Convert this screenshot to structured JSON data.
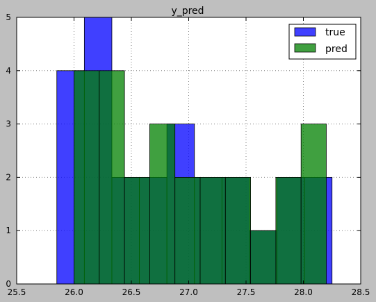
{
  "chart_data": {
    "type": "bar",
    "title": "y_pred",
    "xlabel": "",
    "ylabel": "",
    "xlim": [
      25.5,
      28.5
    ],
    "ylim": [
      0,
      5
    ],
    "xticks": [
      "25.5",
      "26.0",
      "26.5",
      "27.0",
      "27.5",
      "28.0",
      "28.5"
    ],
    "yticks": [
      "0",
      "1",
      "2",
      "3",
      "4",
      "5"
    ],
    "grid": true,
    "legend_position": "top-right",
    "series": [
      {
        "name": "true",
        "color": "#0000ff",
        "bins": [
          {
            "x0": 25.85,
            "x1": 26.09,
            "count": 4
          },
          {
            "x0": 26.09,
            "x1": 26.33,
            "count": 5
          },
          {
            "x0": 26.33,
            "x1": 26.57,
            "count": 2
          },
          {
            "x0": 26.57,
            "x1": 26.81,
            "count": 2
          },
          {
            "x0": 26.81,
            "x1": 27.05,
            "count": 3
          },
          {
            "x0": 27.05,
            "x1": 27.29,
            "count": 2
          },
          {
            "x0": 27.29,
            "x1": 27.53,
            "count": 2
          },
          {
            "x0": 27.53,
            "x1": 27.77,
            "count": 1
          },
          {
            "x0": 27.77,
            "x1": 28.01,
            "count": 2
          },
          {
            "x0": 28.01,
            "x1": 28.25,
            "count": 2
          }
        ]
      },
      {
        "name": "pred",
        "color": "#008000",
        "bins": [
          {
            "x0": 26.0,
            "x1": 26.22,
            "count": 4
          },
          {
            "x0": 26.22,
            "x1": 26.44,
            "count": 4
          },
          {
            "x0": 26.44,
            "x1": 26.66,
            "count": 2
          },
          {
            "x0": 26.66,
            "x1": 26.88,
            "count": 3
          },
          {
            "x0": 26.88,
            "x1": 27.1,
            "count": 2
          },
          {
            "x0": 27.1,
            "x1": 27.32,
            "count": 2
          },
          {
            "x0": 27.32,
            "x1": 27.54,
            "count": 2
          },
          {
            "x0": 27.54,
            "x1": 27.76,
            "count": 1
          },
          {
            "x0": 27.76,
            "x1": 27.98,
            "count": 2
          },
          {
            "x0": 27.98,
            "x1": 28.2,
            "count": 3
          }
        ]
      }
    ]
  }
}
